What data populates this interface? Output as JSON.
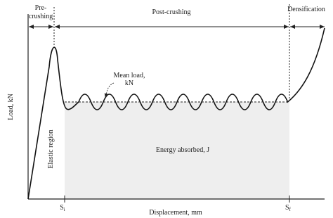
{
  "regions": {
    "pre_crushing": [
      "Pre-",
      "crushing"
    ],
    "post_crushing": "Post-crushing",
    "densification": "Densification"
  },
  "annotations": {
    "mean_load": [
      "Mean load,",
      "kN"
    ],
    "elastic_region": "Elastic region",
    "energy_absorbed": "Energy absorbed, J"
  },
  "axes": {
    "y_label": "Load, kN",
    "x_label": "Displacement, mm"
  },
  "markers": {
    "si": {
      "symbol": "S",
      "subscript": "i"
    },
    "sf": {
      "symbol": "S",
      "subscript": "f"
    }
  }
}
